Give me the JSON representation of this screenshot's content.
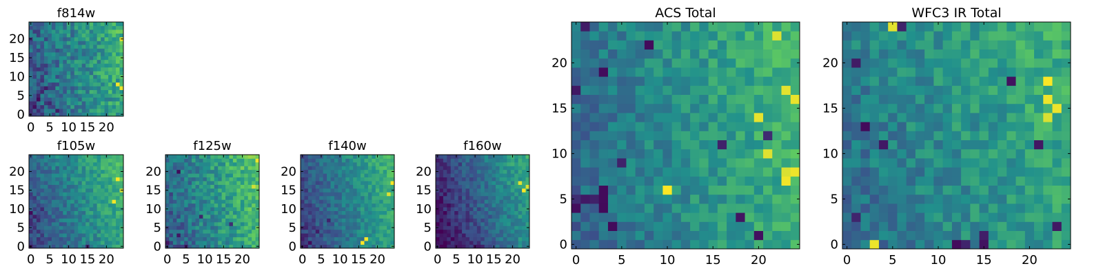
{
  "colormap": "viridis",
  "colormap_stops": [
    "#440154",
    "#3b528b",
    "#21918c",
    "#5ec962",
    "#fde725"
  ],
  "grid_size": 25,
  "chart_data": [
    {
      "type": "heatmap",
      "title": "f814w",
      "xticks": [
        "0",
        "5",
        "10",
        "15",
        "20"
      ],
      "yticks": [
        "0",
        "5",
        "10",
        "15",
        "20"
      ],
      "xlim": [
        -0.5,
        24.5
      ],
      "ylim": [
        -0.5,
        24.5
      ],
      "pattern": {
        "base": 0.45,
        "gradient_x": 0.35,
        "gradient_y": 0.05,
        "noise": 0.32,
        "seed": 11,
        "dark_spots": [
          [
            2,
            5
          ],
          [
            3,
            6
          ],
          [
            2,
            4
          ],
          [
            5,
            3
          ],
          [
            4,
            7
          ],
          [
            1,
            2
          ],
          [
            7,
            1
          ]
        ],
        "bright_spots": [
          [
            24,
            20
          ],
          [
            23,
            8
          ],
          [
            24,
            7
          ]
        ]
      }
    },
    {
      "type": "heatmap",
      "title": "f105w",
      "xticks": [
        "0",
        "5",
        "10",
        "15",
        "20"
      ],
      "yticks": [
        "0",
        "5",
        "10",
        "15",
        "20"
      ],
      "xlim": [
        -0.5,
        24.5
      ],
      "ylim": [
        -0.5,
        24.5
      ],
      "pattern": {
        "base": 0.45,
        "gradient_x": 0.38,
        "gradient_y": 0.12,
        "noise": 0.22,
        "seed": 23,
        "dark_spots": [
          [
            0,
            9
          ],
          [
            1,
            8
          ],
          [
            2,
            7
          ],
          [
            0,
            0
          ],
          [
            15,
            0
          ],
          [
            3,
            10
          ]
        ],
        "bright_spots": [
          [
            24,
            15
          ],
          [
            23,
            18
          ],
          [
            22,
            12
          ]
        ]
      }
    },
    {
      "type": "heatmap",
      "title": "f125w",
      "xticks": [
        "0",
        "5",
        "10",
        "15",
        "20"
      ],
      "yticks": [
        "0",
        "5",
        "10",
        "15",
        "20"
      ],
      "xlim": [
        -0.5,
        24.5
      ],
      "ylim": [
        -0.5,
        24.5
      ],
      "pattern": {
        "base": 0.5,
        "gradient_x": 0.38,
        "gradient_y": 0.1,
        "noise": 0.28,
        "seed": 37,
        "dark_spots": [
          [
            3,
            3
          ],
          [
            5,
            0
          ],
          [
            17,
            6
          ],
          [
            9,
            8
          ],
          [
            3,
            20
          ],
          [
            0,
            1
          ]
        ],
        "bright_spots": [
          [
            24,
            23
          ],
          [
            23,
            16
          ]
        ]
      }
    },
    {
      "type": "heatmap",
      "title": "f140w",
      "xticks": [
        "0",
        "5",
        "10",
        "15",
        "20"
      ],
      "yticks": [
        "0",
        "5",
        "10",
        "15",
        "20"
      ],
      "xlim": [
        -0.5,
        24.5
      ],
      "ylim": [
        -0.5,
        24.5
      ],
      "pattern": {
        "base": 0.42,
        "gradient_x": 0.4,
        "gradient_y": 0.1,
        "noise": 0.2,
        "seed": 41,
        "dark_spots": [
          [
            1,
            0
          ],
          [
            2,
            1
          ],
          [
            0,
            2
          ],
          [
            7,
            7
          ],
          [
            4,
            4
          ]
        ],
        "bright_spots": [
          [
            16,
            1
          ],
          [
            17,
            2
          ],
          [
            24,
            17
          ],
          [
            23,
            14
          ]
        ]
      }
    },
    {
      "type": "heatmap",
      "title": "f160w",
      "xticks": [
        "0",
        "5",
        "10",
        "15",
        "20"
      ],
      "yticks": [
        "0",
        "5",
        "10",
        "15",
        "20"
      ],
      "xlim": [
        -0.5,
        24.5
      ],
      "ylim": [
        -0.5,
        24.5
      ],
      "pattern": {
        "base": 0.32,
        "gradient_x": 0.48,
        "gradient_y": 0.15,
        "noise": 0.2,
        "seed": 53,
        "dark_spots": [
          [
            0,
            0
          ],
          [
            3,
            0
          ],
          [
            10,
            0
          ],
          [
            11,
            0
          ],
          [
            12,
            0
          ],
          [
            1,
            22
          ],
          [
            0,
            23
          ],
          [
            2,
            14
          ]
        ],
        "bright_spots": [
          [
            24,
            16
          ],
          [
            23,
            15
          ],
          [
            22,
            17
          ]
        ]
      }
    },
    {
      "type": "heatmap",
      "title": "ACS Total",
      "xticks": [
        "0",
        "5",
        "10",
        "15",
        "20"
      ],
      "yticks": [
        "0",
        "5",
        "10",
        "15",
        "20"
      ],
      "xlim": [
        -0.5,
        24.5
      ],
      "ylim": [
        -0.5,
        24.5
      ],
      "pattern": {
        "base": 0.5,
        "gradient_x": 0.3,
        "gradient_y": 0.05,
        "noise": 0.22,
        "seed": 67,
        "dark_spots": [
          [
            0,
            4
          ],
          [
            0,
            5
          ],
          [
            1,
            5
          ],
          [
            2,
            5
          ],
          [
            3,
            5
          ],
          [
            3,
            6
          ],
          [
            3,
            4
          ],
          [
            0,
            17
          ],
          [
            3,
            19
          ],
          [
            8,
            22
          ],
          [
            1,
            24
          ],
          [
            16,
            11
          ],
          [
            20,
            1
          ],
          [
            4,
            2
          ],
          [
            21,
            12
          ],
          [
            18,
            3
          ],
          [
            5,
            9
          ]
        ],
        "bright_spots": [
          [
            23,
            8
          ],
          [
            24,
            8
          ],
          [
            23,
            7
          ],
          [
            23,
            17
          ],
          [
            24,
            16
          ],
          [
            22,
            23
          ],
          [
            21,
            10
          ],
          [
            10,
            6
          ],
          [
            20,
            14
          ]
        ]
      }
    },
    {
      "type": "heatmap",
      "title": "WFC3 IR Total",
      "xticks": [
        "0",
        "5",
        "10",
        "15",
        "20"
      ],
      "yticks": [
        "0",
        "5",
        "10",
        "15",
        "20"
      ],
      "xlim": [
        -0.5,
        24.5
      ],
      "ylim": [
        -0.5,
        24.5
      ],
      "pattern": {
        "base": 0.5,
        "gradient_x": 0.22,
        "gradient_y": 0.08,
        "noise": 0.24,
        "seed": 79,
        "dark_spots": [
          [
            1,
            20
          ],
          [
            6,
            24
          ],
          [
            18,
            18
          ],
          [
            21,
            11
          ],
          [
            15,
            0
          ],
          [
            1,
            3
          ],
          [
            15,
            1
          ],
          [
            13,
            0
          ],
          [
            12,
            0
          ],
          [
            4,
            11
          ],
          [
            2,
            13
          ],
          [
            23,
            2
          ]
        ],
        "bright_spots": [
          [
            22,
            16
          ],
          [
            23,
            15
          ],
          [
            22,
            14
          ],
          [
            3,
            0
          ],
          [
            5,
            24
          ],
          [
            22,
            18
          ]
        ]
      }
    }
  ]
}
